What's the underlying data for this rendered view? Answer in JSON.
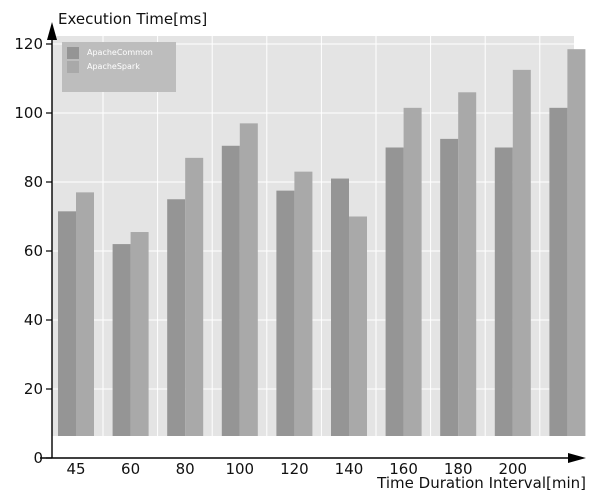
{
  "chart_data": {
    "type": "bar",
    "title": "",
    "xlabel": "Time Duration Interval[min]",
    "ylabel": "Execution Time[ms]",
    "categories": [
      "45",
      "60",
      "80",
      "100",
      "120",
      "140",
      "160",
      "180",
      "200",
      ""
    ],
    "series": [
      {
        "name": "ApacheCommon",
        "values": [
          71.5,
          62,
          75,
          90.5,
          77.5,
          81,
          90,
          92.5,
          90,
          101.5
        ]
      },
      {
        "name": "ApacheSpark",
        "values": [
          77,
          65.5,
          87,
          97,
          83,
          70,
          101.5,
          106,
          112.5,
          118.5
        ]
      }
    ],
    "ylim": [
      0,
      120
    ],
    "yticks": [
      0,
      20,
      40,
      60,
      80,
      100,
      120
    ],
    "grid": true,
    "legend_position": "top-left",
    "colors": {
      "ApacheCommon": "#959595",
      "ApacheSpark": "#a9a9a9",
      "plot_background": "#e4e4e4",
      "grid": "#ffffff",
      "legend_background": "#bdbdbd"
    }
  }
}
